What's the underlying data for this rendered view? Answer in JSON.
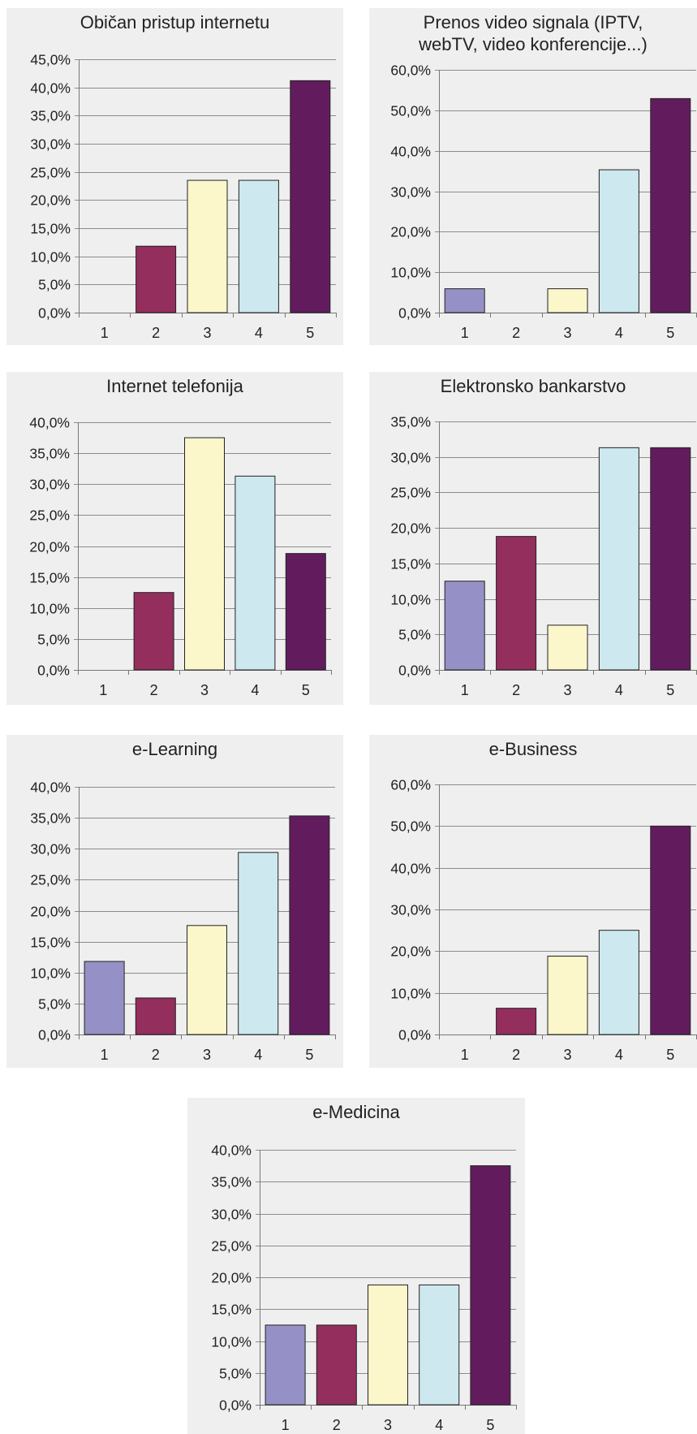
{
  "colors": {
    "category_fills": [
      "#9591c6",
      "#942e5c",
      "#fbf7cb",
      "#cde8ef",
      "#621c5e"
    ],
    "panel_background": "#eeefee",
    "gridline": "#8c8c8c",
    "bar_outline": "#222222"
  },
  "chart_data": [
    {
      "type": "bar",
      "title": "Običan pristup internetu",
      "categories": [
        "1",
        "2",
        "3",
        "4",
        "5"
      ],
      "values": [
        0.0,
        11.8,
        23.5,
        23.5,
        41.2
      ],
      "yticks": [
        "0,0%",
        "5,0%",
        "10,0%",
        "15,0%",
        "20,0%",
        "25,0%",
        "30,0%",
        "35,0%",
        "40,0%",
        "45,0%"
      ],
      "ylim": [
        0,
        45
      ],
      "grid": true
    },
    {
      "type": "bar",
      "title": "Prenos video signala (IPTV,\nwebTV, video konferencije...)",
      "categories": [
        "1",
        "2",
        "3",
        "4",
        "5"
      ],
      "values": [
        5.9,
        0.0,
        5.9,
        35.3,
        52.9
      ],
      "yticks": [
        "0,0%",
        "10,0%",
        "20,0%",
        "30,0%",
        "40,0%",
        "50,0%",
        "60,0%"
      ],
      "ylim": [
        0,
        60
      ],
      "grid": true
    },
    {
      "type": "bar",
      "title": "Internet telefonija",
      "categories": [
        "1",
        "2",
        "3",
        "4",
        "5"
      ],
      "values": [
        0.0,
        12.5,
        37.5,
        31.3,
        18.8
      ],
      "yticks": [
        "0,0%",
        "5,0%",
        "10,0%",
        "15,0%",
        "20,0%",
        "25,0%",
        "30,0%",
        "35,0%",
        "40,0%"
      ],
      "ylim": [
        0,
        40
      ],
      "grid": true
    },
    {
      "type": "bar",
      "title": "Elektronsko bankarstvo",
      "categories": [
        "1",
        "2",
        "3",
        "4",
        "5"
      ],
      "values": [
        12.5,
        18.8,
        6.3,
        31.3,
        31.3
      ],
      "yticks": [
        "0,0%",
        "5,0%",
        "10,0%",
        "15,0%",
        "20,0%",
        "25,0%",
        "30,0%",
        "35,0%"
      ],
      "ylim": [
        0,
        35
      ],
      "grid": true
    },
    {
      "type": "bar",
      "title": "e-Learning",
      "categories": [
        "1",
        "2",
        "3",
        "4",
        "5"
      ],
      "values": [
        11.8,
        5.9,
        17.6,
        29.4,
        35.3
      ],
      "yticks": [
        "0,0%",
        "5,0%",
        "10,0%",
        "15,0%",
        "20,0%",
        "25,0%",
        "30,0%",
        "35,0%",
        "40,0%"
      ],
      "ylim": [
        0,
        40
      ],
      "grid": true
    },
    {
      "type": "bar",
      "title": "e-Business",
      "categories": [
        "1",
        "2",
        "3",
        "4",
        "5"
      ],
      "values": [
        0.0,
        6.3,
        18.8,
        25.0,
        50.0
      ],
      "yticks": [
        "0,0%",
        "10,0%",
        "20,0%",
        "30,0%",
        "40,0%",
        "50,0%",
        "60,0%"
      ],
      "ylim": [
        0,
        60
      ],
      "grid": true
    },
    {
      "type": "bar",
      "title": "e-Medicina",
      "categories": [
        "1",
        "2",
        "3",
        "4",
        "5"
      ],
      "values": [
        12.5,
        12.5,
        18.8,
        18.8,
        37.5
      ],
      "yticks": [
        "0,0%",
        "5,0%",
        "10,0%",
        "15,0%",
        "20,0%",
        "25,0%",
        "30,0%",
        "35,0%",
        "40,0%"
      ],
      "ylim": [
        0,
        40
      ],
      "grid": true
    }
  ]
}
